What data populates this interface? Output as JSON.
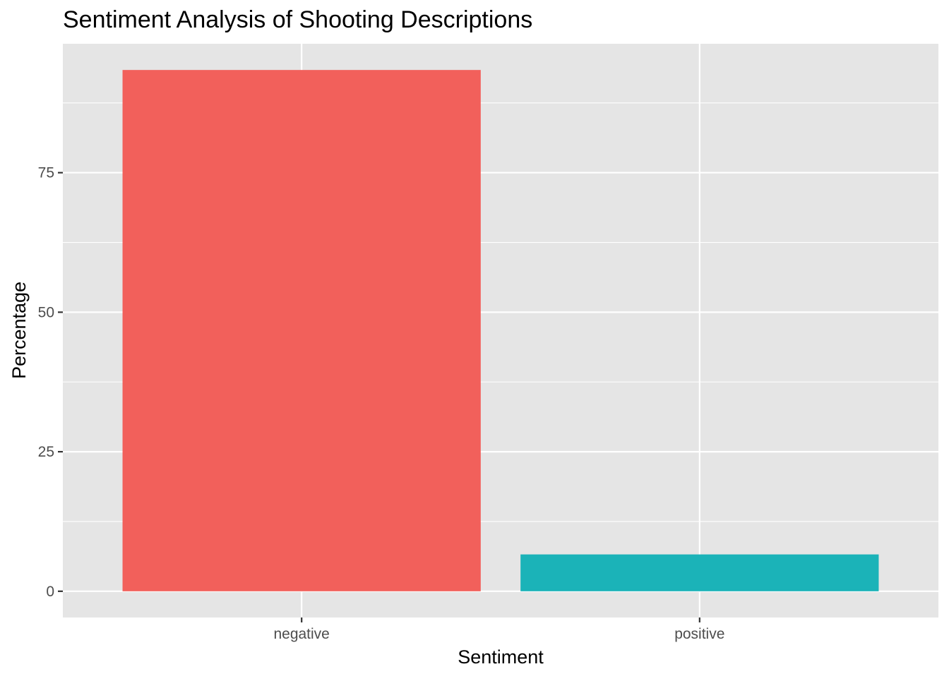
{
  "chart_data": {
    "type": "bar",
    "title": "Sentiment Analysis of Shooting Descriptions",
    "xlabel": "Sentiment",
    "ylabel": "Percentage",
    "categories": [
      "negative",
      "positive"
    ],
    "values": [
      93.4,
      6.6
    ],
    "colors": [
      "#F2605B",
      "#1BB3B8"
    ],
    "ylim": [
      -4.7,
      98.1
    ],
    "yticks": [
      0,
      25,
      50,
      75
    ],
    "ytick_labels": [
      "0",
      "25",
      "50",
      "75"
    ],
    "grid": true,
    "legend": "none",
    "panel_background": "#E5E5E5",
    "grid_color": "#FFFFFF"
  }
}
